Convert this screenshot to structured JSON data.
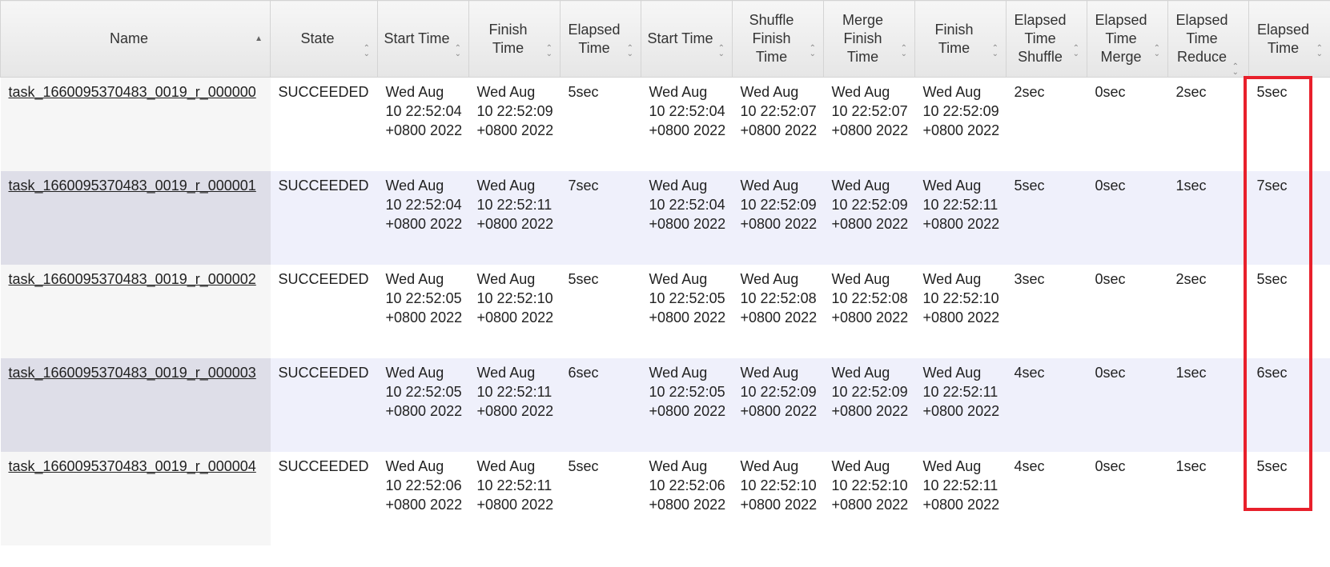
{
  "headers": [
    {
      "label": "Name",
      "sort": "asc"
    },
    {
      "label": "State",
      "sort": "none"
    },
    {
      "label": "Start Time",
      "sort": "none"
    },
    {
      "label": "Finish Time",
      "sort": "none"
    },
    {
      "label": "Elapsed Time",
      "sort": "none"
    },
    {
      "label": "Start Time",
      "sort": "none"
    },
    {
      "label": "Shuffle Finish Time",
      "sort": "none"
    },
    {
      "label": "Merge Finish Time",
      "sort": "none"
    },
    {
      "label": "Finish Time",
      "sort": "none"
    },
    {
      "label": "Elapsed Time Shuffle",
      "sort": "none"
    },
    {
      "label": "Elapsed Time Merge",
      "sort": "none"
    },
    {
      "label": "Elapsed Time Reduce",
      "sort": "none"
    },
    {
      "label": "Elapsed Time",
      "sort": "none"
    }
  ],
  "rows": [
    {
      "name": "task_1660095370483_0019_r_000000",
      "state": "SUCCEEDED",
      "start_time": "Wed Aug 10 22:52:04 +0800 2022",
      "finish_time": "Wed Aug 10 22:52:09 +0800 2022",
      "elapsed_time": "5sec",
      "attempt_start_time": "Wed Aug 10 22:52:04 +0800 2022",
      "shuffle_finish_time": "Wed Aug 10 22:52:07 +0800 2022",
      "merge_finish_time": "Wed Aug 10 22:52:07 +0800 2022",
      "attempt_finish_time": "Wed Aug 10 22:52:09 +0800 2022",
      "elapsed_shuffle": "2sec",
      "elapsed_merge": "0sec",
      "elapsed_reduce": "2sec",
      "attempt_elapsed": "5sec"
    },
    {
      "name": "task_1660095370483_0019_r_000001",
      "state": "SUCCEEDED",
      "start_time": "Wed Aug 10 22:52:04 +0800 2022",
      "finish_time": "Wed Aug 10 22:52:11 +0800 2022",
      "elapsed_time": "7sec",
      "attempt_start_time": "Wed Aug 10 22:52:04 +0800 2022",
      "shuffle_finish_time": "Wed Aug 10 22:52:09 +0800 2022",
      "merge_finish_time": "Wed Aug 10 22:52:09 +0800 2022",
      "attempt_finish_time": "Wed Aug 10 22:52:11 +0800 2022",
      "elapsed_shuffle": "5sec",
      "elapsed_merge": "0sec",
      "elapsed_reduce": "1sec",
      "attempt_elapsed": "7sec"
    },
    {
      "name": "task_1660095370483_0019_r_000002",
      "state": "SUCCEEDED",
      "start_time": "Wed Aug 10 22:52:05 +0800 2022",
      "finish_time": "Wed Aug 10 22:52:10 +0800 2022",
      "elapsed_time": "5sec",
      "attempt_start_time": "Wed Aug 10 22:52:05 +0800 2022",
      "shuffle_finish_time": "Wed Aug 10 22:52:08 +0800 2022",
      "merge_finish_time": "Wed Aug 10 22:52:08 +0800 2022",
      "attempt_finish_time": "Wed Aug 10 22:52:10 +0800 2022",
      "elapsed_shuffle": "3sec",
      "elapsed_merge": "0sec",
      "elapsed_reduce": "2sec",
      "attempt_elapsed": "5sec"
    },
    {
      "name": "task_1660095370483_0019_r_000003",
      "state": "SUCCEEDED",
      "start_time": "Wed Aug 10 22:52:05 +0800 2022",
      "finish_time": "Wed Aug 10 22:52:11 +0800 2022",
      "elapsed_time": "6sec",
      "attempt_start_time": "Wed Aug 10 22:52:05 +0800 2022",
      "shuffle_finish_time": "Wed Aug 10 22:52:09 +0800 2022",
      "merge_finish_time": "Wed Aug 10 22:52:09 +0800 2022",
      "attempt_finish_time": "Wed Aug 10 22:52:11 +0800 2022",
      "elapsed_shuffle": "4sec",
      "elapsed_merge": "0sec",
      "elapsed_reduce": "1sec",
      "attempt_elapsed": "6sec"
    },
    {
      "name": "task_1660095370483_0019_r_000004",
      "state": "SUCCEEDED",
      "start_time": "Wed Aug 10 22:52:06 +0800 2022",
      "finish_time": "Wed Aug 10 22:52:11 +0800 2022",
      "elapsed_time": "5sec",
      "attempt_start_time": "Wed Aug 10 22:52:06 +0800 2022",
      "shuffle_finish_time": "Wed Aug 10 22:52:10 +0800 2022",
      "merge_finish_time": "Wed Aug 10 22:52:10 +0800 2022",
      "attempt_finish_time": "Wed Aug 10 22:52:11 +0800 2022",
      "elapsed_shuffle": "4sec",
      "elapsed_merge": "0sec",
      "elapsed_reduce": "1sec",
      "attempt_elapsed": "5sec"
    }
  ],
  "colors": {
    "highlight": "#e8202b",
    "even_row": "#eff0fb",
    "header": "#e6e6e6"
  }
}
